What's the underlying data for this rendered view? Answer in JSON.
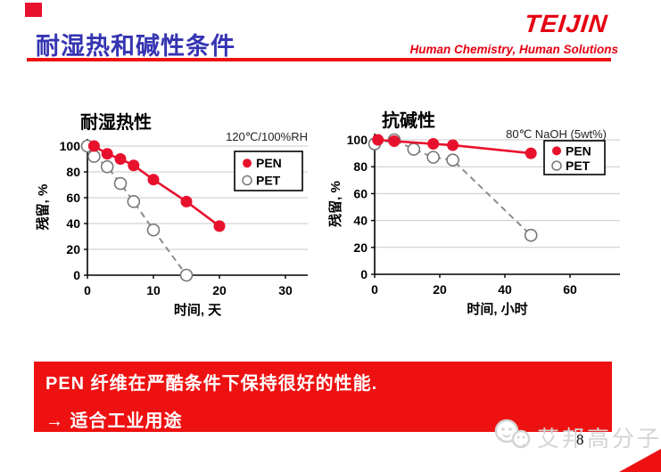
{
  "slide": {
    "title": "耐湿热和碱性条件",
    "page_number": "8",
    "colors": {
      "title_blue": "#3534b2",
      "accent_red": "#ee1111",
      "teijin_red": "#e60012",
      "pen_red": "#e8112d",
      "pet_gray": "#8c8c8c",
      "grid_gray": "#c9c9c9",
      "watermark_gray": "#d4d4d4"
    }
  },
  "header": {
    "logo_text": "TEIJIN",
    "tagline": "Human Chemistry, Human Solutions"
  },
  "banner": {
    "line1": "PEN 纤维在严酷条件下保持很好的性能.",
    "line2": "→ 适合工业用途"
  },
  "watermark": {
    "logo": "wechat-smiley-icon",
    "text": "艾邦高分子"
  },
  "chart_data": [
    {
      "type": "line",
      "title": "耐湿热性",
      "annotation": "120℃/100%RH",
      "xlabel": "时间, 天",
      "ylabel": "残留, %",
      "xticks": [
        0,
        10,
        20,
        30
      ],
      "yticks": [
        0,
        20,
        40,
        60,
        80,
        100
      ],
      "xlim": [
        0,
        33
      ],
      "ylim": [
        0,
        100
      ],
      "grid": true,
      "legend_position": "upper right",
      "series": [
        {
          "name": "PEN",
          "color": "#e8112d",
          "line": "solid",
          "marker": "filled",
          "points": [
            [
              1,
              100
            ],
            [
              3,
              94
            ],
            [
              5,
              90
            ],
            [
              7,
              85
            ],
            [
              10,
              74
            ],
            [
              15,
              57
            ],
            [
              20,
              38
            ]
          ]
        },
        {
          "name": "PET",
          "color": "#8c8c8c",
          "line": "dashed",
          "marker": "open",
          "points": [
            [
              0,
              100
            ],
            [
              1,
              92
            ],
            [
              3,
              84
            ],
            [
              5,
              71
            ],
            [
              7,
              57
            ],
            [
              10,
              35
            ],
            [
              15,
              0
            ]
          ]
        }
      ]
    },
    {
      "type": "line",
      "title": "抗碱性",
      "annotation": "80℃ NaOH (5wt%)",
      "xlabel": "时间, 小时",
      "ylabel": "残留, %",
      "xticks": [
        0,
        20,
        40,
        60
      ],
      "yticks": [
        0,
        20,
        40,
        60,
        80,
        100
      ],
      "xlim": [
        0,
        75
      ],
      "ylim": [
        0,
        100
      ],
      "grid": true,
      "legend_position": "upper right",
      "series": [
        {
          "name": "PEN",
          "color": "#e8112d",
          "line": "solid",
          "marker": "filled",
          "points": [
            [
              1,
              100
            ],
            [
              6,
              99
            ],
            [
              18,
              97
            ],
            [
              24,
              96
            ],
            [
              48,
              90
            ]
          ]
        },
        {
          "name": "PET",
          "color": "#8c8c8c",
          "line": "dashed",
          "marker": "open",
          "points": [
            [
              0,
              97
            ],
            [
              6,
              100
            ],
            [
              12,
              93
            ],
            [
              18,
              87
            ],
            [
              24,
              85
            ],
            [
              48,
              29
            ]
          ]
        }
      ]
    }
  ]
}
